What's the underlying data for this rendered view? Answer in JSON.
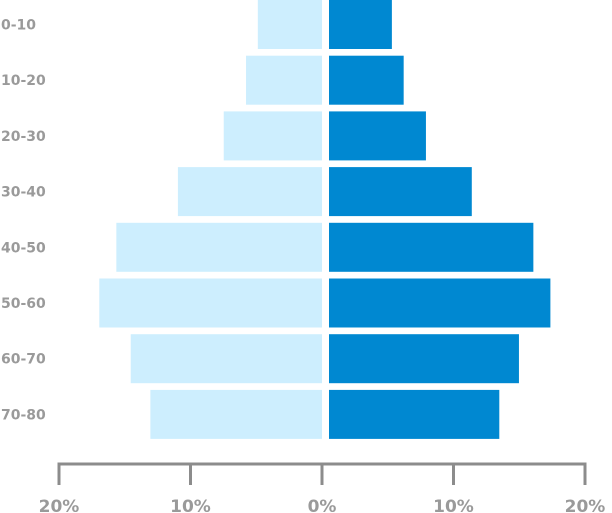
{
  "chart_data": {
    "type": "bar",
    "orientation": "horizontal",
    "layout": "population-pyramid",
    "categories": [
      "0-10",
      "10-20",
      "20-30",
      "30-40",
      "40-50",
      "50-60",
      "60-70",
      "70-80"
    ],
    "series": [
      {
        "side": "left",
        "color": "#cdeefe",
        "values": [
          4.9,
          5.8,
          7.5,
          11.0,
          15.7,
          17.0,
          14.6,
          13.1
        ]
      },
      {
        "side": "right",
        "color": "#0088d1",
        "values": [
          4.8,
          5.7,
          7.4,
          10.9,
          15.6,
          16.9,
          14.5,
          13.0
        ]
      }
    ],
    "xlim": [
      -20,
      20
    ],
    "xticks": [
      -20,
      -10,
      0,
      10,
      20
    ],
    "xtick_labels": [
      "20%",
      "10%",
      "0%",
      "10%",
      "20%"
    ],
    "grid": false,
    "legend": "none",
    "colors": {
      "axis": "#8c8c8c",
      "label": "#9a9a9a"
    }
  }
}
